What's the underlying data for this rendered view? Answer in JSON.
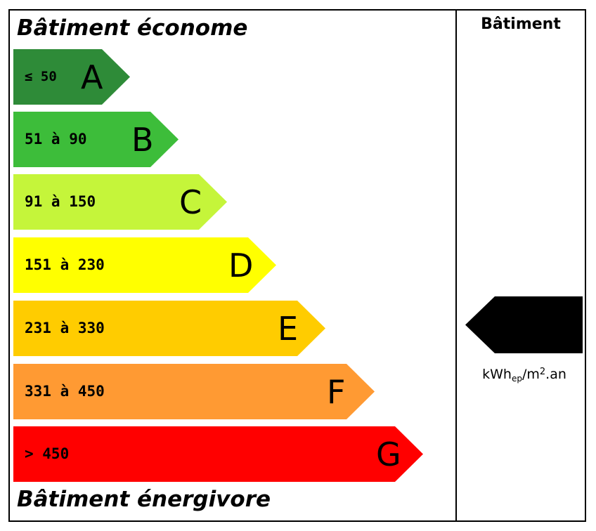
{
  "header": {
    "top_label": "Bâtiment économe",
    "bottom_label": "Bâtiment énergivore",
    "column_label": "Bâtiment"
  },
  "classes": [
    {
      "range": "≤ 50",
      "letter": "A",
      "color": "#2e8b38"
    },
    {
      "range": "51 à 90",
      "letter": "B",
      "color": "#3dbd3a"
    },
    {
      "range": "91 à 150",
      "letter": "C",
      "color": "#c5f53a"
    },
    {
      "range": "151 à 230",
      "letter": "D",
      "color": "#ffff00"
    },
    {
      "range": "231 à 330",
      "letter": "E",
      "color": "#ffcc00"
    },
    {
      "range": "331 à 450",
      "letter": "F",
      "color": "#ff9a33"
    },
    {
      "range": "> 450",
      "letter": "G",
      "color": "#ff0000"
    }
  ],
  "indicator": {
    "unit_main": "kWh",
    "unit_sub": "ep",
    "unit_mid": "/m",
    "unit_sup": "2",
    "unit_end": ".an",
    "color": "#000000"
  }
}
